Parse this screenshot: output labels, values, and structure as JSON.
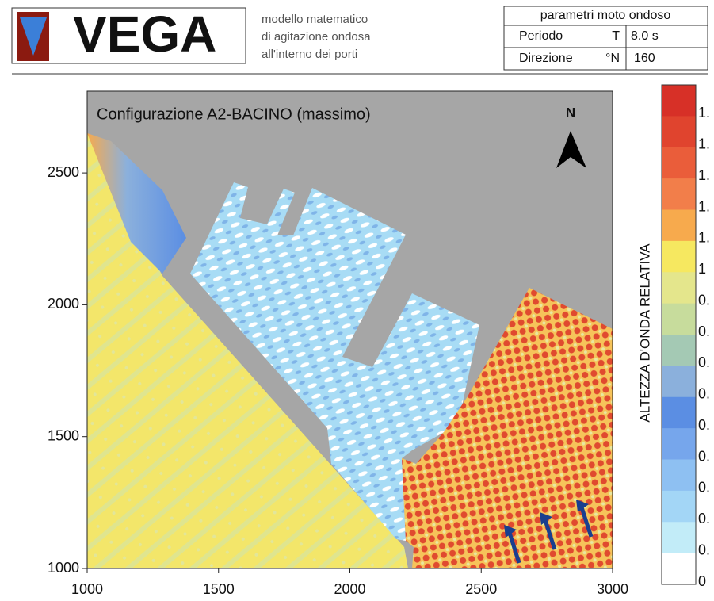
{
  "header": {
    "logo_text": "VEGA",
    "description": [
      "modello matematico",
      "di agitazione ondosa",
      "all'interno dei porti"
    ],
    "params_table": {
      "title": "parametri moto ondoso",
      "rows": [
        [
          "Periodo",
          "T",
          "8.0 s"
        ],
        [
          "Direzione",
          "°N",
          "160"
        ]
      ]
    }
  },
  "chart_data": {
    "type": "contour",
    "title": "Configurazione A2-BACINO (massimo)",
    "xlim": [
      1000,
      3000
    ],
    "ylim": [
      1000,
      2810
    ],
    "xticks": [
      1000,
      1500,
      2000,
      2500,
      3000
    ],
    "yticks": [
      1000,
      1500,
      2000,
      2500
    ],
    "north_label": "N",
    "colorbar": {
      "label": "ALTEZZA D'ONDA RELATIVA",
      "colors": [
        "#d73027",
        "#e0442e",
        "#ea5d3a",
        "#f27e4a",
        "#f7aa4d",
        "#f6e860",
        "#e4e68c",
        "#c7dc9c",
        "#a4c9b4",
        "#8bb0dc",
        "#5b8ee3",
        "#76a6ec",
        "#8ec0f2",
        "#a3d6f6",
        "#c2ecf8",
        "#ffffff"
      ],
      "tick_labels": [
        "1.",
        "1.",
        "1.",
        "1.",
        "1.",
        "1",
        "0.",
        "0.",
        "0.",
        "0.",
        "0.",
        "0.",
        "0.",
        "0.",
        "0.",
        "0"
      ]
    }
  }
}
